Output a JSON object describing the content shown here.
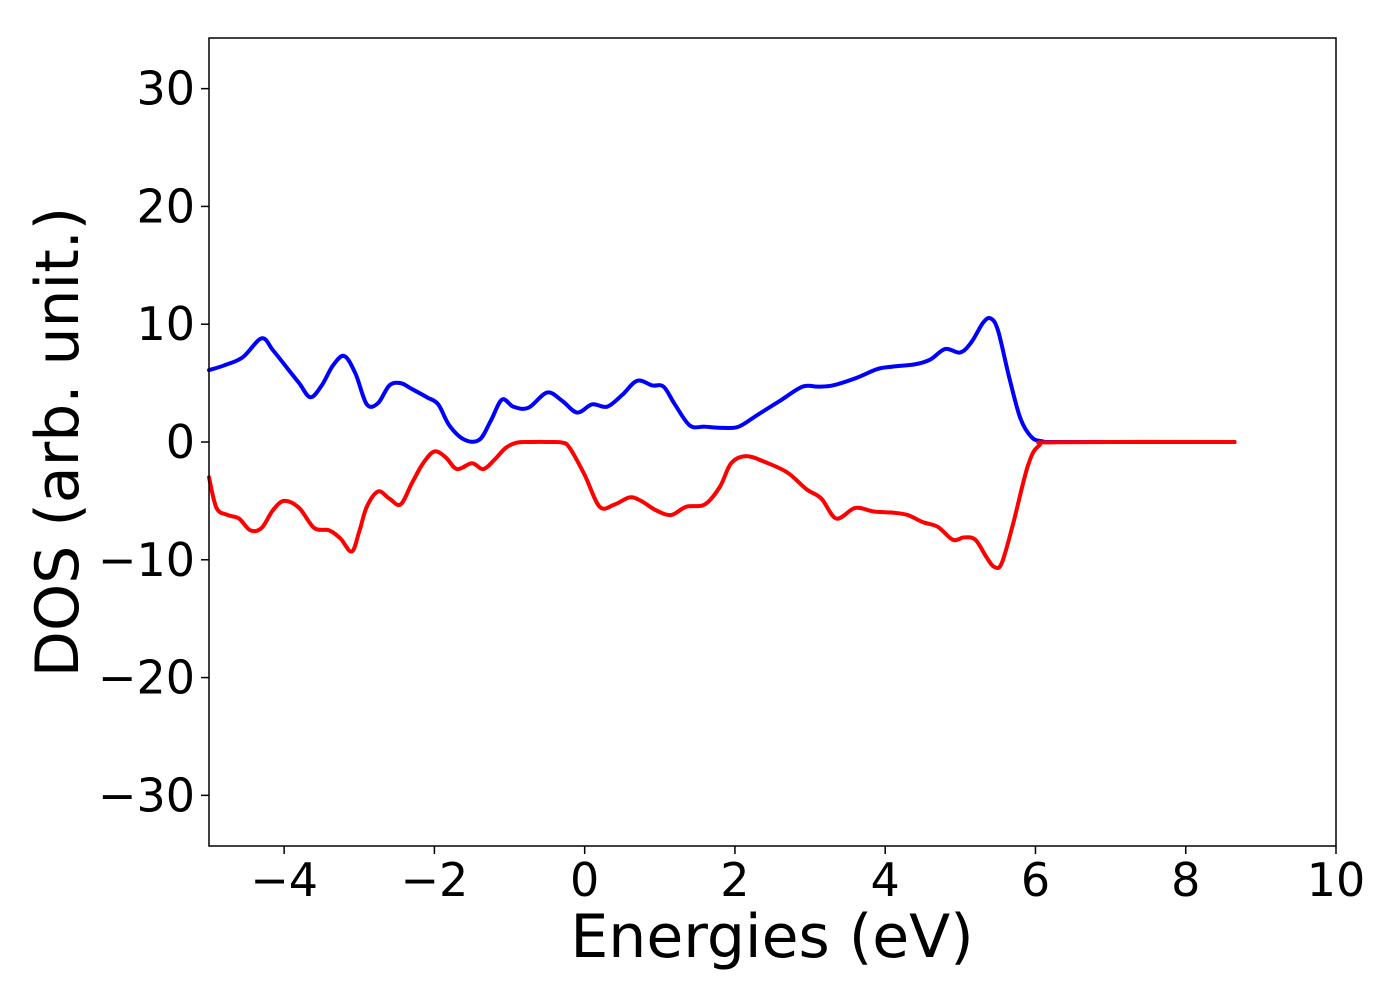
{
  "chart_data": {
    "type": "line",
    "title": "",
    "xlabel": "Energies (eV)",
    "ylabel": "DOS (arb. unit.)",
    "xlim": [
      -5,
      10
    ],
    "ylim": [
      -34.3,
      34.3
    ],
    "grid": false,
    "x_ticks": [
      -4,
      -2,
      0,
      2,
      4,
      6,
      8,
      10
    ],
    "x_tick_labels": [
      "−4",
      "−2",
      "0",
      "2",
      "4",
      "6",
      "8",
      "10"
    ],
    "y_ticks": [
      30,
      20,
      10,
      0,
      -10,
      -20,
      -30
    ],
    "y_tick_labels": [
      "30",
      "20",
      "10",
      "0",
      "−10",
      "−20",
      "−30"
    ],
    "series": [
      {
        "color": "#0000ff",
        "x": [
          -5,
          -4.8,
          -4.55,
          -4.3,
          -4.15,
          -3.95,
          -3.8,
          -3.65,
          -3.5,
          -3.35,
          -3.2,
          -3.05,
          -2.9,
          -2.75,
          -2.6,
          -2.45,
          -2.3,
          -2.1,
          -1.95,
          -1.8,
          -1.6,
          -1.4,
          -1.25,
          -1.1,
          -0.95,
          -0.75,
          -0.5,
          -0.3,
          -0.1,
          0.1,
          0.3,
          0.5,
          0.7,
          0.9,
          1.05,
          1.2,
          1.4,
          1.6,
          1.85,
          2.05,
          2.3,
          2.6,
          2.9,
          3.1,
          3.3,
          3.6,
          3.9,
          4.1,
          4.4,
          4.6,
          4.8,
          5.0,
          5.15,
          5.3,
          5.4,
          5.5,
          5.65,
          5.8,
          5.95,
          6.1,
          6.3,
          8.65
        ],
        "y": [
          6.1,
          6.5,
          7.2,
          8.8,
          7.8,
          6.2,
          5.0,
          3.8,
          4.8,
          6.5,
          7.3,
          5.8,
          3.2,
          3.3,
          4.8,
          5.0,
          4.5,
          3.8,
          3.2,
          1.4,
          0.2,
          0.2,
          1.8,
          3.6,
          3.0,
          2.9,
          4.2,
          3.5,
          2.5,
          3.2,
          3.0,
          4.0,
          5.2,
          4.8,
          4.7,
          3.2,
          1.4,
          1.3,
          1.2,
          1.3,
          2.3,
          3.5,
          4.7,
          4.7,
          4.8,
          5.4,
          6.2,
          6.4,
          6.6,
          7.0,
          7.9,
          7.6,
          8.5,
          10.1,
          10.5,
          9.5,
          5.5,
          2.0,
          0.4,
          0.05,
          0.0,
          0.0
        ]
      },
      {
        "color": "#ff0000",
        "x": [
          -5,
          -4.9,
          -4.75,
          -4.6,
          -4.45,
          -4.3,
          -4.15,
          -4.0,
          -3.8,
          -3.6,
          -3.4,
          -3.25,
          -3.1,
          -3.0,
          -2.9,
          -2.75,
          -2.6,
          -2.45,
          -2.3,
          -2.15,
          -2.0,
          -1.85,
          -1.7,
          -1.5,
          -1.35,
          -1.2,
          -1.05,
          -0.9,
          -0.7,
          -0.5,
          -0.3,
          -0.2,
          0.0,
          0.2,
          0.4,
          0.6,
          0.75,
          0.95,
          1.15,
          1.35,
          1.6,
          1.8,
          1.95,
          2.15,
          2.4,
          2.7,
          2.95,
          3.15,
          3.35,
          3.6,
          3.85,
          4.1,
          4.3,
          4.5,
          4.7,
          4.9,
          5.05,
          5.2,
          5.35,
          5.45,
          5.55,
          5.7,
          5.9,
          6.05,
          6.3,
          8.65
        ],
        "y": [
          -3.0,
          -5.6,
          -6.2,
          -6.5,
          -7.5,
          -7.3,
          -5.8,
          -5.0,
          -5.6,
          -7.3,
          -7.5,
          -8.2,
          -9.3,
          -7.6,
          -5.5,
          -4.2,
          -4.8,
          -5.3,
          -3.5,
          -1.8,
          -0.8,
          -1.3,
          -2.3,
          -1.8,
          -2.3,
          -1.5,
          -0.5,
          -0.05,
          0.0,
          0.0,
          -0.05,
          -0.5,
          -2.8,
          -5.5,
          -5.3,
          -4.7,
          -5.0,
          -5.8,
          -6.2,
          -5.5,
          -5.3,
          -3.8,
          -1.8,
          -1.2,
          -1.7,
          -2.6,
          -4.0,
          -4.8,
          -6.5,
          -5.6,
          -5.9,
          -6.0,
          -6.2,
          -6.8,
          -7.2,
          -8.3,
          -8.1,
          -8.3,
          -9.8,
          -10.6,
          -10.3,
          -7.0,
          -2.0,
          -0.3,
          -0.02,
          0.0
        ]
      }
    ]
  }
}
